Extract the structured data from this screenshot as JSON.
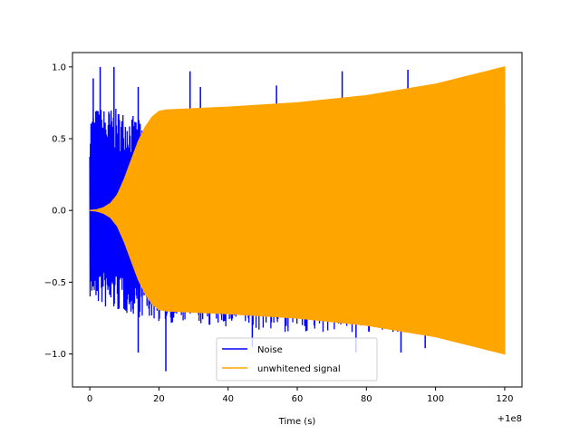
{
  "chart_data": {
    "type": "line",
    "title": "",
    "xlabel": "Time (s)",
    "ylabel": "",
    "x_offset_label": "+1e8",
    "xlim": [
      -5,
      125
    ],
    "ylim": [
      -1.23,
      1.1
    ],
    "x_ticks": [
      0,
      20,
      40,
      60,
      80,
      100,
      120
    ],
    "x_tick_labels": [
      "0",
      "20",
      "40",
      "60",
      "80",
      "100",
      "120"
    ],
    "y_ticks": [
      -1.0,
      -0.5,
      0.0,
      0.5,
      1.0
    ],
    "y_tick_labels": [
      "−1.0",
      "−0.5",
      "0.0",
      "0.5",
      "1.0"
    ],
    "grid": false,
    "legend_position": "bottom-center",
    "series": [
      {
        "name": "Noise",
        "color": "#0000ff",
        "kind": "oscillating",
        "envelope_t": [
          0,
          2,
          5,
          10,
          15,
          20,
          30,
          40,
          50,
          60,
          70,
          80,
          90,
          100,
          110,
          120
        ],
        "envelope_upper": [
          0.68,
          0.72,
          0.72,
          0.7,
          0.62,
          0.58,
          0.6,
          0.62,
          0.64,
          0.66,
          0.7,
          0.74,
          0.78,
          0.84,
          0.9,
          0.96
        ],
        "envelope_lower": [
          -0.62,
          -0.65,
          -0.7,
          -0.72,
          -0.75,
          -0.78,
          -0.8,
          -0.82,
          -0.84,
          -0.85,
          -0.86,
          -0.86,
          -0.85,
          -0.82,
          -0.8,
          -0.78
        ],
        "spikes": [
          {
            "x": 1,
            "y": 0.92
          },
          {
            "x": 3,
            "y": 1.0
          },
          {
            "x": 7,
            "y": 1.0
          },
          {
            "x": 14,
            "y": 0.86
          },
          {
            "x": 29,
            "y": 0.97
          },
          {
            "x": 32,
            "y": 0.86
          },
          {
            "x": 54,
            "y": 0.87
          },
          {
            "x": 73,
            "y": 0.97
          },
          {
            "x": 92,
            "y": 0.98
          },
          {
            "x": 117,
            "y": 0.84
          },
          {
            "x": 22,
            "y": -1.12
          },
          {
            "x": 14,
            "y": -0.99
          },
          {
            "x": 77,
            "y": -0.99
          },
          {
            "x": 90,
            "y": -0.99
          },
          {
            "x": 97,
            "y": -0.96
          },
          {
            "x": 47,
            "y": -0.95
          }
        ]
      },
      {
        "name": "unwhitened signal",
        "color": "#ffa500",
        "kind": "chirp",
        "envelope_t": [
          0,
          2,
          4,
          6,
          8,
          10,
          12,
          14,
          16,
          18,
          20,
          22,
          40,
          60,
          80,
          100,
          120
        ],
        "envelope_upper": [
          0.0,
          0.005,
          0.02,
          0.05,
          0.11,
          0.22,
          0.35,
          0.48,
          0.58,
          0.65,
          0.69,
          0.7,
          0.72,
          0.75,
          0.8,
          0.88,
          1.0
        ],
        "envelope_lower": [
          0.0,
          -0.005,
          -0.02,
          -0.05,
          -0.11,
          -0.22,
          -0.35,
          -0.48,
          -0.58,
          -0.65,
          -0.69,
          -0.7,
          -0.72,
          -0.75,
          -0.8,
          -0.88,
          -1.0
        ]
      }
    ]
  }
}
